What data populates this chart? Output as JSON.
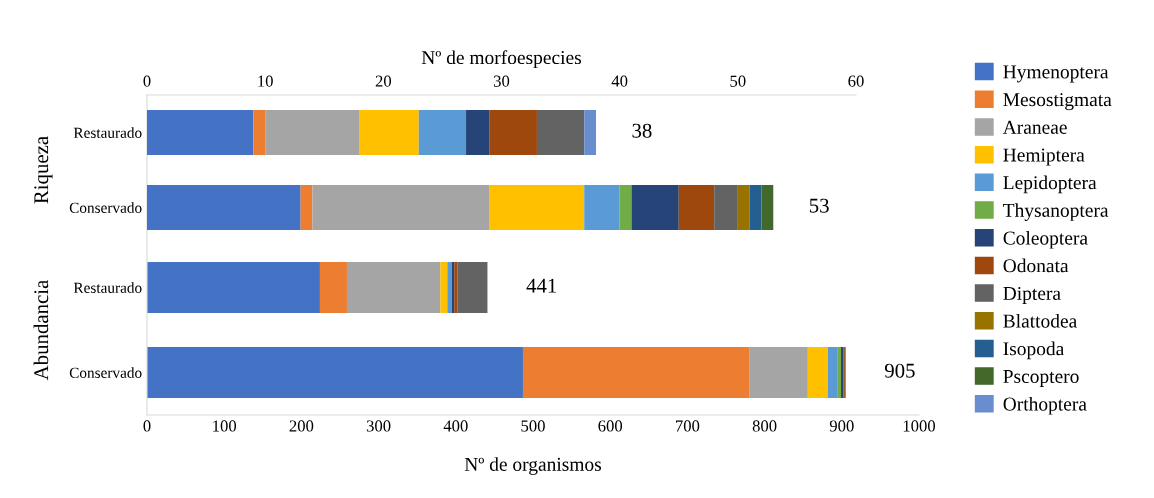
{
  "chart_data": [
    {
      "type": "bar",
      "orientation": "horizontal",
      "stacked": true,
      "ylabel": "Riqueza",
      "x2label": "Nº de morfoespecies",
      "categories": [
        "Restaurado",
        "Conservado"
      ],
      "x2lim": [
        0,
        60
      ],
      "x2ticks": [
        0,
        10,
        20,
        30,
        40,
        50,
        60
      ],
      "tick_labels": "x2y",
      "legend": "right",
      "totals": [
        "38",
        "53"
      ],
      "series": [
        {
          "name": "Hymenoptera",
          "color": "#4472c4",
          "axis": "x2",
          "values": [
            9,
            13
          ]
        },
        {
          "name": "Mesostigmata",
          "color": "#ed7d31",
          "axis": "x2",
          "values": [
            1,
            1
          ]
        },
        {
          "name": "Araneae",
          "color": "#a5a5a5",
          "axis": "x2",
          "values": [
            8,
            15
          ]
        },
        {
          "name": "Hemiptera",
          "color": "#ffc000",
          "axis": "x2",
          "values": [
            5,
            8
          ]
        },
        {
          "name": "Lepidoptera",
          "color": "#5b9bd5",
          "axis": "x2",
          "values": [
            4,
            3
          ]
        },
        {
          "name": "Thysanoptera",
          "color": "#70ad47",
          "axis": "x2",
          "values": [
            0,
            1
          ]
        },
        {
          "name": "Coleoptera",
          "color": "#264478",
          "axis": "x2",
          "values": [
            2,
            4
          ]
        },
        {
          "name": "Odonata",
          "color": "#9e480e",
          "axis": "x2",
          "values": [
            4,
            3
          ]
        },
        {
          "name": "Diptera",
          "color": "#636363",
          "axis": "x2",
          "values": [
            4,
            2
          ]
        },
        {
          "name": "Blattodea",
          "color": "#997300",
          "axis": "x2",
          "values": [
            0,
            1
          ]
        },
        {
          "name": "Isopoda",
          "color": "#255e91",
          "axis": "x2",
          "values": [
            0,
            1
          ]
        },
        {
          "name": "Pscoptero",
          "color": "#43682b",
          "axis": "x2",
          "values": [
            0,
            1
          ]
        },
        {
          "name": "Orthoptera",
          "color": "#698ed0",
          "axis": "x2",
          "values": [
            1,
            0
          ]
        }
      ]
    },
    {
      "type": "bar",
      "orientation": "horizontal",
      "stacked": true,
      "ylabel": "Abundancia",
      "xlabel": "Nº de organismos",
      "categories": [
        "Restaurado",
        "Conservado"
      ],
      "xlim": [
        0,
        1000
      ],
      "xticks": [
        0,
        100,
        200,
        300,
        400,
        500,
        600,
        700,
        800,
        900,
        1000
      ],
      "totals": [
        "441",
        "905"
      ],
      "series": [
        {
          "color": "#4472c4",
          "values": [
            224,
            487
          ]
        },
        {
          "color": "#ed7d31",
          "values": [
            35,
            293
          ]
        },
        {
          "color": "#a5a5a5",
          "values": [
            121,
            76
          ]
        },
        {
          "color": "#ffc000",
          "values": [
            9,
            26
          ]
        },
        {
          "color": "#5b9bd5",
          "values": [
            6,
            12
          ]
        },
        {
          "color": "#70ad47",
          "values": [
            0,
            5
          ]
        },
        {
          "color": "#264478",
          "values": [
            3,
            3
          ]
        },
        {
          "color": "#9e480e",
          "values": [
            4,
            2
          ]
        },
        {
          "color": "#636363",
          "values": [
            39,
            0
          ]
        },
        {
          "color": "#997300",
          "values": [
            0,
            0
          ]
        },
        {
          "color": "#255e91",
          "values": [
            0,
            0
          ]
        },
        {
          "color": "#43682b",
          "values": [
            0,
            1
          ]
        },
        {
          "color": "#698ed0",
          "values": [
            0,
            0
          ]
        }
      ]
    }
  ]
}
